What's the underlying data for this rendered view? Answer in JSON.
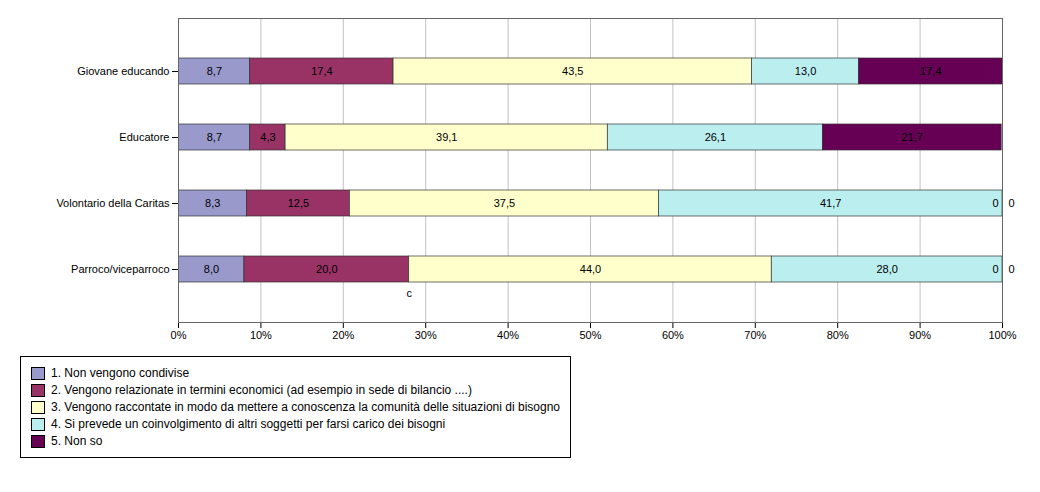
{
  "chart_data": {
    "type": "bar",
    "orientation": "horizontal",
    "stacked": true,
    "categories": [
      "Giovane educando",
      "Educatore",
      "Volontario della Caritas",
      "Parroco/viceparroco"
    ],
    "series": [
      {
        "name": "1. Non vengono condivise",
        "color": "#9999CC",
        "values": [
          8.7,
          8.7,
          8.3,
          8.0
        ],
        "value_labels": [
          "8,7",
          "8,7",
          "8,3",
          "8,0"
        ]
      },
      {
        "name": "2. Vengono relazionate in termini economici (ad esempio in sede di bilancio ....)",
        "color": "#993366",
        "values": [
          17.4,
          4.3,
          12.5,
          20.0
        ],
        "value_labels": [
          "17,4",
          "4,3",
          "12,5",
          "20,0"
        ]
      },
      {
        "name": "3. Vengono raccontate in modo da mettere a conoscenza la comunità delle situazioni di bisogno",
        "color": "#FFFFCC",
        "values": [
          43.5,
          39.1,
          37.5,
          44.0
        ],
        "value_labels": [
          "43,5",
          "39,1",
          "37,5",
          "44,0"
        ]
      },
      {
        "name": "4. Si prevede un coinvolgimento di altri soggetti per farsi carico dei bisogni",
        "color": "#BBEEEE",
        "values": [
          13.0,
          26.1,
          41.7,
          28.0
        ],
        "value_labels": [
          "13,0",
          "26,1",
          "41,7",
          "28,0"
        ]
      },
      {
        "name": "5. Non so",
        "color": "#660055",
        "values": [
          17.4,
          21.7,
          0.0,
          0.0
        ],
        "value_labels": [
          "17,4",
          "21,7",
          "0",
          "0"
        ]
      }
    ],
    "xlim": [
      0,
      100
    ],
    "xticks": [
      {
        "value": 0,
        "label": "0%"
      },
      {
        "value": 10,
        "label": "10%"
      },
      {
        "value": 20,
        "label": "20%"
      },
      {
        "value": 30,
        "label": "30%"
      },
      {
        "value": 40,
        "label": "40%"
      },
      {
        "value": 50,
        "label": "50%"
      },
      {
        "value": 60,
        "label": "60%"
      },
      {
        "value": 70,
        "label": "70%"
      },
      {
        "value": 80,
        "label": "80%"
      },
      {
        "value": 90,
        "label": "90%"
      },
      {
        "value": 100,
        "label": "100%"
      }
    ],
    "grid": true,
    "legend": "bottom",
    "data_labels": true,
    "annotations": [
      {
        "text": "c",
        "x": 28,
        "category": "Parroco/viceparroco"
      }
    ]
  }
}
